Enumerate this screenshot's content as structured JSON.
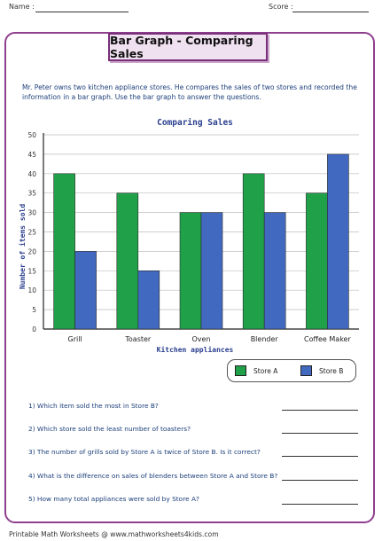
{
  "header": {
    "name_label": "Name :",
    "score_label": "Score :"
  },
  "title": "Bar Graph - Comparing Sales",
  "intro": "Mr. Peter owns two kitchen appliance stores. He compares the sales of two stores and recorded the information in a bar graph. Use the bar graph to answer the questions.",
  "chart_data": {
    "type": "bar",
    "title": "Comparing Sales",
    "xlabel": "Kitchen appliances",
    "ylabel": "Number of items sold",
    "categories": [
      "Grill",
      "Toaster",
      "Oven",
      "Blender",
      "Coffee Maker"
    ],
    "series": [
      {
        "name": "Store A",
        "values": [
          40,
          35,
          30,
          40,
          35
        ],
        "color": "#1fa049"
      },
      {
        "name": "Store B",
        "values": [
          20,
          15,
          30,
          30,
          45
        ],
        "color": "#4169c0"
      }
    ],
    "ylim": [
      0,
      50
    ],
    "yticks": [
      0,
      5,
      10,
      15,
      20,
      25,
      30,
      35,
      40,
      45,
      50
    ],
    "grid": true,
    "legend_position": "bottom-right"
  },
  "questions": [
    "1) Which item sold the most in Store B?",
    "2) Which store sold the least number of toasters?",
    "3) The number of grills sold by Store A is twice of Store B. Is it correct?",
    "4) What is the difference on sales of blenders between Store A and Store B?",
    "5) How many total appliances were sold by Store A?"
  ],
  "footer": "Printable Math Worksheets @ www.mathworksheets4kids.com"
}
